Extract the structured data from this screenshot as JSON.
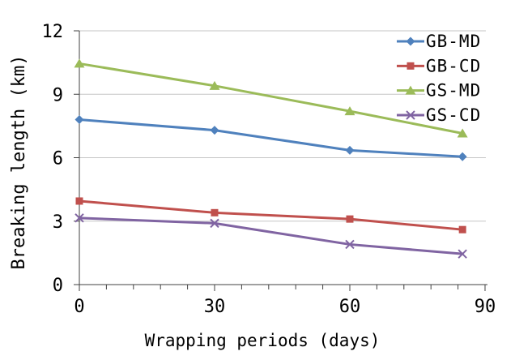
{
  "chart_data": {
    "type": "line",
    "title": "",
    "xlabel": "Wrapping periods (days)",
    "ylabel": "Breaking length (km)",
    "x": [
      0,
      30,
      60,
      85
    ],
    "xlim": [
      0,
      90
    ],
    "ylim": [
      0,
      12
    ],
    "x_major_ticks": [
      0,
      30,
      60,
      90
    ],
    "x_minor_tick_interval": 6,
    "y_ticks": [
      0,
      3,
      6,
      9,
      12
    ],
    "grid": "horizontal-major",
    "legend_position": "top-right-overlay",
    "series": [
      {
        "name": "GB-MD",
        "marker": "diamond",
        "color": "#4F81BD",
        "values": [
          7.8,
          7.3,
          6.35,
          6.05
        ]
      },
      {
        "name": "GB-CD",
        "marker": "square",
        "color": "#C0504D",
        "values": [
          3.95,
          3.4,
          3.1,
          2.6
        ]
      },
      {
        "name": "GS-MD",
        "marker": "triangle",
        "color": "#9BBB59",
        "values": [
          10.45,
          9.4,
          8.2,
          7.15
        ]
      },
      {
        "name": "GS-CD",
        "marker": "x",
        "color": "#8064A2",
        "values": [
          3.15,
          2.9,
          1.9,
          1.45
        ]
      }
    ],
    "colors": {
      "grid": "#C6C6C6",
      "axis": "#404040",
      "text": "#000000",
      "background": "#FFFFFF"
    }
  }
}
